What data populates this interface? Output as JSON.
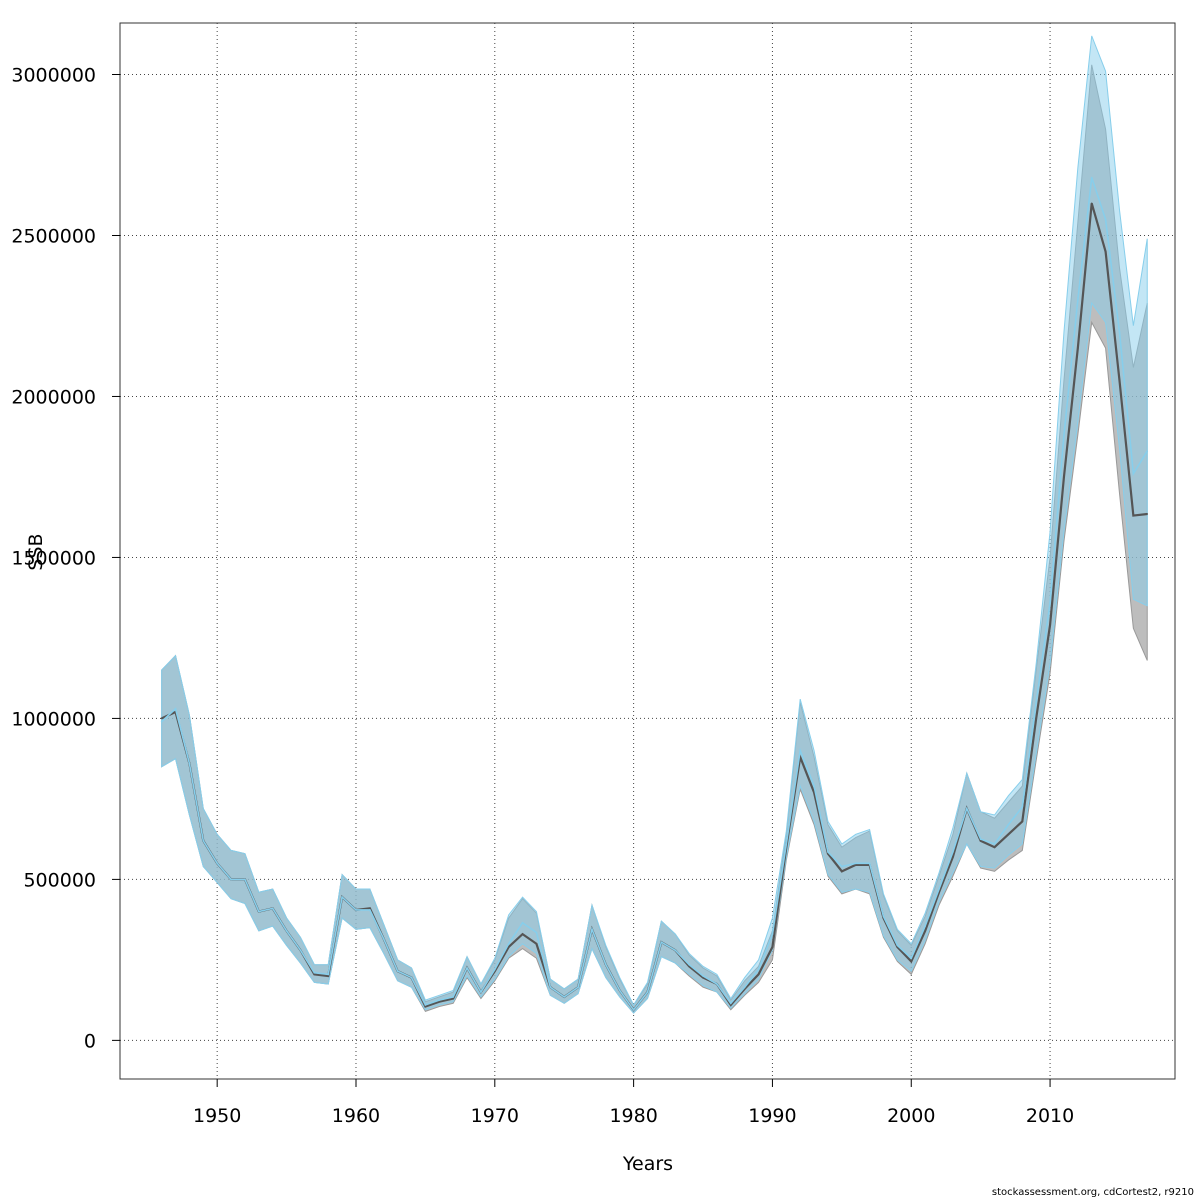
{
  "chart_data": {
    "type": "area",
    "xlabel": "Years",
    "ylabel": "SSB",
    "xlim": [
      1943,
      2019
    ],
    "ylim": [
      -120000,
      3160000
    ],
    "xticks": [
      1950,
      1960,
      1970,
      1980,
      1990,
      2000,
      2010
    ],
    "yticks": [
      0,
      500000,
      1000000,
      1500000,
      2000000,
      2500000,
      3000000
    ],
    "ytick_labels": [
      "0",
      "500000",
      "1000000",
      "1500000",
      "2000000",
      "2500000",
      "3000000"
    ],
    "grid": true,
    "x": [
      1946,
      1947,
      1948,
      1949,
      1950,
      1951,
      1952,
      1953,
      1954,
      1955,
      1956,
      1957,
      1958,
      1959,
      1960,
      1961,
      1962,
      1963,
      1964,
      1965,
      1966,
      1967,
      1968,
      1969,
      1970,
      1971,
      1972,
      1973,
      1974,
      1975,
      1976,
      1977,
      1978,
      1979,
      1980,
      1981,
      1982,
      1983,
      1984,
      1985,
      1986,
      1987,
      1988,
      1989,
      1990,
      1991,
      1992,
      1993,
      1994,
      1995,
      1996,
      1997,
      1998,
      1999,
      2000,
      2001,
      2002,
      2003,
      2004,
      2005,
      2006,
      2007,
      2008,
      2009,
      2010,
      2011,
      2012,
      2013,
      2014,
      2015,
      2016,
      2017
    ],
    "series": [
      {
        "color": "#555555",
        "band_color": "#999999",
        "values": [
          1000000,
          1020000,
          860000,
          620000,
          550000,
          500000,
          500000,
          400000,
          410000,
          340000,
          280000,
          205000,
          200000,
          445000,
          405000,
          410000,
          315000,
          215000,
          195000,
          105000,
          120000,
          130000,
          225000,
          150000,
          215000,
          290000,
          330000,
          300000,
          165000,
          135000,
          165000,
          345000,
          235000,
          155000,
          95000,
          150000,
          305000,
          280000,
          230000,
          195000,
          175000,
          110000,
          160000,
          205000,
          290000,
          600000,
          880000,
          770000,
          580000,
          525000,
          545000,
          545000,
          380000,
          290000,
          245000,
          340000,
          460000,
          570000,
          720000,
          620000,
          600000,
          640000,
          680000,
          1000000,
          1290000,
          1750000,
          2150000,
          2600000,
          2450000,
          2050000,
          1630000,
          1635000
        ],
        "lower": [
          850000,
          875000,
          700000,
          540000,
          490000,
          440000,
          425000,
          340000,
          355000,
          295000,
          240000,
          180000,
          175000,
          380000,
          345000,
          350000,
          270000,
          185000,
          165000,
          90000,
          105000,
          115000,
          195000,
          130000,
          185000,
          255000,
          285000,
          255000,
          140000,
          115000,
          145000,
          285000,
          195000,
          135000,
          85000,
          130000,
          260000,
          240000,
          200000,
          165000,
          150000,
          95000,
          140000,
          180000,
          250000,
          560000,
          780000,
          670000,
          510000,
          455000,
          470000,
          455000,
          320000,
          245000,
          205000,
          300000,
          420000,
          510000,
          610000,
          535000,
          525000,
          560000,
          590000,
          870000,
          1140000,
          1550000,
          1880000,
          2230000,
          2150000,
          1700000,
          1280000,
          1180000
        ],
        "upper": [
          1150000,
          1195000,
          1010000,
          720000,
          640000,
          590000,
          580000,
          460000,
          470000,
          380000,
          320000,
          235000,
          235000,
          515000,
          470000,
          470000,
          360000,
          250000,
          225000,
          120000,
          135000,
          150000,
          260000,
          175000,
          250000,
          380000,
          440000,
          395000,
          190000,
          160000,
          190000,
          420000,
          290000,
          190000,
          110000,
          175000,
          370000,
          330000,
          265000,
          225000,
          200000,
          125000,
          185000,
          230000,
          340000,
          640000,
          1050000,
          880000,
          670000,
          600000,
          630000,
          650000,
          450000,
          340000,
          295000,
          385000,
          510000,
          640000,
          830000,
          710000,
          690000,
          740000,
          790000,
          1150000,
          1500000,
          2050000,
          2540000,
          3030000,
          2830000,
          2400000,
          2090000,
          2290000
        ]
      },
      {
        "color": "#87ceeb",
        "band_color": "#87ceeb",
        "values": [
          990000,
          1030000,
          860000,
          620000,
          550000,
          500000,
          500000,
          400000,
          410000,
          340000,
          280000,
          210000,
          205000,
          445000,
          405000,
          405000,
          315000,
          215000,
          195000,
          110000,
          125000,
          135000,
          225000,
          150000,
          220000,
          300000,
          365000,
          335000,
          165000,
          135000,
          165000,
          345000,
          235000,
          155000,
          95000,
          150000,
          305000,
          280000,
          235000,
          200000,
          175000,
          115000,
          165000,
          220000,
          330000,
          610000,
          900000,
          790000,
          585000,
          540000,
          550000,
          550000,
          385000,
          295000,
          255000,
          355000,
          470000,
          585000,
          720000,
          625000,
          610000,
          670000,
          725000,
          1050000,
          1360000,
          1880000,
          2300000,
          2680000,
          2550000,
          2200000,
          1760000,
          1830000
        ],
        "lower": [
          850000,
          875000,
          700000,
          540000,
          490000,
          440000,
          425000,
          340000,
          355000,
          295000,
          240000,
          180000,
          175000,
          380000,
          345000,
          350000,
          270000,
          185000,
          165000,
          95000,
          110000,
          120000,
          200000,
          135000,
          190000,
          260000,
          300000,
          270000,
          140000,
          115000,
          145000,
          285000,
          195000,
          135000,
          85000,
          130000,
          260000,
          240000,
          205000,
          170000,
          150000,
          100000,
          145000,
          190000,
          280000,
          570000,
          790000,
          680000,
          515000,
          460000,
          470000,
          460000,
          325000,
          250000,
          215000,
          310000,
          430000,
          520000,
          610000,
          540000,
          535000,
          575000,
          610000,
          890000,
          1170000,
          1580000,
          1920000,
          2290000,
          2230000,
          1840000,
          1370000,
          1350000
        ],
        "upper": [
          1150000,
          1195000,
          1010000,
          720000,
          640000,
          590000,
          580000,
          460000,
          470000,
          380000,
          320000,
          235000,
          235000,
          515000,
          470000,
          470000,
          360000,
          250000,
          225000,
          125000,
          140000,
          155000,
          260000,
          175000,
          255000,
          390000,
          445000,
          400000,
          190000,
          160000,
          190000,
          420000,
          295000,
          195000,
          110000,
          180000,
          370000,
          330000,
          270000,
          230000,
          205000,
          130000,
          195000,
          250000,
          380000,
          650000,
          1060000,
          900000,
          680000,
          610000,
          640000,
          655000,
          455000,
          345000,
          300000,
          395000,
          520000,
          660000,
          830000,
          710000,
          700000,
          760000,
          810000,
          1170000,
          1580000,
          2200000,
          2710000,
          3120000,
          3010000,
          2580000,
          2220000,
          2490000
        ]
      }
    ]
  },
  "footer": "stockassessment.org, cdCortest2, r9210"
}
